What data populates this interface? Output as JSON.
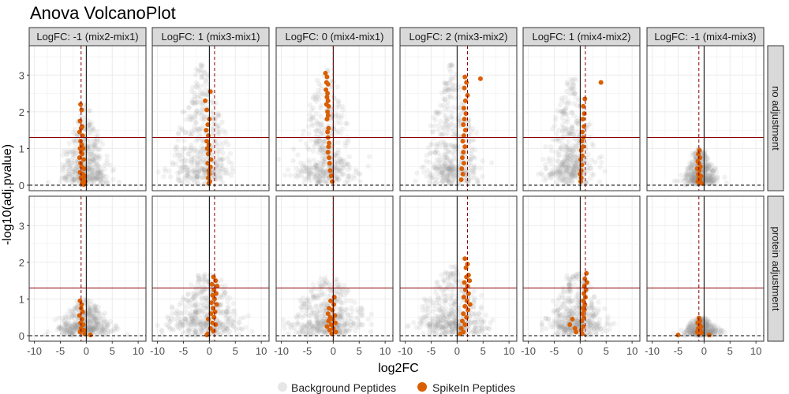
{
  "chart_data": {
    "type": "scatter",
    "title": "Anova VolcanoPlot",
    "xlabel": "log2FC",
    "ylabel": "-log10(adj.pvalue)",
    "xlim": [
      -11,
      11.5
    ],
    "ylim": [
      -0.15,
      3.8
    ],
    "x_ticks": [
      -10,
      -5,
      0,
      5,
      10
    ],
    "y_ticks": [
      0,
      1,
      2,
      3
    ],
    "grid": true,
    "legend_position": "bottom",
    "colors": {
      "background": "#9e9e9e",
      "spikein": "#d95f02",
      "threshold": "#8b0000",
      "strip_fill": "#d9d9d9",
      "grid": "#ebebeb"
    },
    "significance_threshold": 1.3,
    "legend": [
      {
        "key": "background",
        "label": "Background Peptides"
      },
      {
        "key": "spikein",
        "label": "SpikeIn Peptides"
      }
    ],
    "rows": [
      "no adjustment",
      "protein adjustment"
    ],
    "comparisons": [
      {
        "label": "LogFC: -1 (mix2-mix1)",
        "logfc": -1
      },
      {
        "label": "LogFC: 1 (mix3-mix1)",
        "logfc": 1
      },
      {
        "label": "LogFC: 0 (mix4-mix1)",
        "logfc": 0
      },
      {
        "label": "LogFC: 2 (mix3-mix2)",
        "logfc": 2
      },
      {
        "label": "LogFC: 1 (mix4-mix2)",
        "logfc": 1
      },
      {
        "label": "LogFC: -1 (mix4-mix3)",
        "logfc": -1
      }
    ],
    "panels": [
      {
        "comparison": 0,
        "row": 0,
        "background_shape": {
          "center_x": -0.3,
          "spread_x": 4.5,
          "max_y": 2.2,
          "base_y": 0.45
        },
        "spikein": [
          [
            -1.1,
            2.2
          ],
          [
            -0.9,
            2.05
          ],
          [
            -1.2,
            1.75
          ],
          [
            -0.8,
            1.6
          ],
          [
            -1.0,
            1.55
          ],
          [
            -1.3,
            1.45
          ],
          [
            -0.7,
            1.35
          ],
          [
            -1.1,
            1.2
          ],
          [
            -0.9,
            1.1
          ],
          [
            -1.2,
            1.0
          ],
          [
            -0.6,
            1.0
          ],
          [
            -1.0,
            0.9
          ],
          [
            -0.8,
            0.85
          ],
          [
            -1.3,
            0.75
          ],
          [
            -0.5,
            0.7
          ],
          [
            -1.1,
            0.6
          ],
          [
            -0.9,
            0.5
          ],
          [
            -0.4,
            0.45
          ],
          [
            -1.2,
            0.35
          ],
          [
            -0.7,
            0.3
          ],
          [
            -0.3,
            0.25
          ],
          [
            -1.0,
            0.2
          ],
          [
            -0.6,
            0.15
          ],
          [
            -0.2,
            0.1
          ],
          [
            -0.8,
            0.05
          ],
          [
            -0.5,
            0.02
          ]
        ]
      },
      {
        "comparison": 1,
        "row": 0,
        "background_shape": {
          "center_x": -1.5,
          "spread_x": 5.5,
          "max_y": 3.3,
          "base_y": 0.8
        },
        "spikein": [
          [
            0.2,
            2.55
          ],
          [
            -0.8,
            2.3
          ],
          [
            -0.5,
            2.05
          ],
          [
            0.0,
            1.8
          ],
          [
            -0.3,
            1.65
          ],
          [
            -0.6,
            1.5
          ],
          [
            -0.2,
            1.35
          ],
          [
            -0.5,
            1.2
          ],
          [
            -0.1,
            1.1
          ],
          [
            -0.4,
            1.0
          ],
          [
            0.1,
            0.95
          ],
          [
            -0.2,
            0.85
          ],
          [
            0.3,
            0.7
          ],
          [
            -0.3,
            0.6
          ],
          [
            0.2,
            0.5
          ],
          [
            -0.1,
            0.4
          ],
          [
            0.0,
            0.3
          ],
          [
            -0.2,
            0.2
          ],
          [
            0.1,
            0.1
          ],
          [
            -0.1,
            0.05
          ]
        ]
      },
      {
        "comparison": 2,
        "row": 0,
        "background_shape": {
          "center_x": -1.3,
          "spread_x": 5.5,
          "max_y": 3.2,
          "base_y": 0.8
        },
        "spikein": [
          [
            -1.5,
            3.05
          ],
          [
            -1.2,
            2.95
          ],
          [
            -1.3,
            2.8
          ],
          [
            -1.0,
            2.75
          ],
          [
            -1.4,
            2.6
          ],
          [
            -1.1,
            2.5
          ],
          [
            -1.2,
            2.4
          ],
          [
            -1.0,
            2.3
          ],
          [
            -1.3,
            2.2
          ],
          [
            -0.9,
            2.15
          ],
          [
            -1.1,
            2.0
          ],
          [
            -1.0,
            1.9
          ],
          [
            -1.2,
            1.8
          ],
          [
            -0.9,
            1.55
          ],
          [
            -1.1,
            1.45
          ],
          [
            -1.0,
            1.3
          ],
          [
            -0.8,
            1.15
          ],
          [
            -0.9,
            1.05
          ],
          [
            -1.0,
            0.9
          ],
          [
            -0.8,
            0.75
          ],
          [
            -0.7,
            0.6
          ],
          [
            -0.6,
            0.4
          ],
          [
            -0.4,
            0.25
          ],
          [
            -0.2,
            0.1
          ]
        ]
      },
      {
        "comparison": 3,
        "row": 0,
        "background_shape": {
          "center_x": -1.0,
          "spread_x": 5.0,
          "max_y": 3.3,
          "base_y": 0.8
        },
        "spikein": [
          [
            4.5,
            2.9
          ],
          [
            1.5,
            2.95
          ],
          [
            1.8,
            2.8
          ],
          [
            1.4,
            2.65
          ],
          [
            2.0,
            2.45
          ],
          [
            1.6,
            2.3
          ],
          [
            1.3,
            2.1
          ],
          [
            1.7,
            1.95
          ],
          [
            1.4,
            1.8
          ],
          [
            1.2,
            1.65
          ],
          [
            1.6,
            1.5
          ],
          [
            1.3,
            1.35
          ],
          [
            1.1,
            1.2
          ],
          [
            1.5,
            1.05
          ],
          [
            1.2,
            0.9
          ],
          [
            1.0,
            0.75
          ],
          [
            1.3,
            0.6
          ],
          [
            0.9,
            0.45
          ],
          [
            1.1,
            0.3
          ],
          [
            0.8,
            0.15
          ]
        ]
      },
      {
        "comparison": 4,
        "row": 0,
        "background_shape": {
          "center_x": -1.8,
          "spread_x": 5.0,
          "max_y": 2.9,
          "base_y": 0.8
        },
        "spikein": [
          [
            4.0,
            2.8
          ],
          [
            0.9,
            2.35
          ],
          [
            0.6,
            2.15
          ],
          [
            0.8,
            1.95
          ],
          [
            0.5,
            1.8
          ],
          [
            0.7,
            1.6
          ],
          [
            0.4,
            1.45
          ],
          [
            0.6,
            1.3
          ],
          [
            0.3,
            1.2
          ],
          [
            0.5,
            1.05
          ],
          [
            0.2,
            0.95
          ],
          [
            0.4,
            0.8
          ],
          [
            0.1,
            0.7
          ],
          [
            0.3,
            0.55
          ],
          [
            0.2,
            0.4
          ],
          [
            0.0,
            0.3
          ],
          [
            0.2,
            0.2
          ],
          [
            0.1,
            0.1
          ]
        ]
      },
      {
        "comparison": 5,
        "row": 0,
        "background_shape": {
          "center_x": -0.8,
          "spread_x": 3.2,
          "max_y": 1.0,
          "base_y": 0.35
        },
        "spikein": [
          [
            -0.9,
            0.95
          ],
          [
            -1.1,
            0.85
          ],
          [
            -0.8,
            0.75
          ],
          [
            -1.2,
            0.65
          ],
          [
            -1.0,
            0.6
          ],
          [
            -0.7,
            0.5
          ],
          [
            -1.3,
            0.45
          ],
          [
            -0.9,
            0.4
          ],
          [
            -1.1,
            0.3
          ],
          [
            -0.6,
            0.25
          ],
          [
            -1.0,
            0.2
          ],
          [
            -0.8,
            0.15
          ],
          [
            -1.2,
            0.1
          ],
          [
            -0.5,
            0.05
          ]
        ]
      },
      {
        "comparison": 0,
        "row": 1,
        "background_shape": {
          "center_x": -0.3,
          "spread_x": 5.5,
          "max_y": 1.0,
          "base_y": 0.35
        },
        "spikein": [
          [
            -1.2,
            0.95
          ],
          [
            -0.9,
            0.85
          ],
          [
            -1.0,
            0.75
          ],
          [
            -0.7,
            0.65
          ],
          [
            -1.3,
            0.55
          ],
          [
            -0.8,
            0.45
          ],
          [
            -1.1,
            0.35
          ],
          [
            -0.6,
            0.3
          ],
          [
            -1.0,
            0.2
          ],
          [
            -0.5,
            0.15
          ],
          [
            -1.2,
            0.1
          ],
          [
            -0.3,
            0.05
          ],
          [
            0.8,
            0.02
          ]
        ]
      },
      {
        "comparison": 1,
        "row": 1,
        "background_shape": {
          "center_x": -0.5,
          "spread_x": 7.0,
          "max_y": 1.7,
          "base_y": 0.6
        },
        "spikein": [
          [
            0.8,
            1.6
          ],
          [
            1.2,
            1.5
          ],
          [
            0.5,
            1.4
          ],
          [
            1.5,
            1.35
          ],
          [
            0.9,
            1.25
          ],
          [
            1.3,
            1.15
          ],
          [
            0.6,
            1.1
          ],
          [
            1.0,
            1.0
          ],
          [
            0.4,
            0.9
          ],
          [
            1.4,
            0.85
          ],
          [
            0.7,
            0.75
          ],
          [
            1.1,
            0.65
          ],
          [
            0.3,
            0.6
          ],
          [
            0.9,
            0.5
          ],
          [
            -0.2,
            0.45
          ],
          [
            0.6,
            0.35
          ],
          [
            1.2,
            0.3
          ],
          [
            0.2,
            0.2
          ],
          [
            0.8,
            0.12
          ],
          [
            -0.3,
            0.05
          ],
          [
            -0.5,
            0.02
          ]
        ]
      },
      {
        "comparison": 2,
        "row": 1,
        "background_shape": {
          "center_x": -1.0,
          "spread_x": 7.5,
          "max_y": 1.6,
          "base_y": 0.6
        },
        "spikein": [
          [
            0.2,
            1.05
          ],
          [
            -0.5,
            0.95
          ],
          [
            0.1,
            0.85
          ],
          [
            -0.8,
            0.75
          ],
          [
            -0.2,
            0.7
          ],
          [
            -1.0,
            0.6
          ],
          [
            0.3,
            0.55
          ],
          [
            -0.6,
            0.5
          ],
          [
            -0.1,
            0.45
          ],
          [
            -0.9,
            0.4
          ],
          [
            0.4,
            0.35
          ],
          [
            -0.4,
            0.3
          ],
          [
            -1.2,
            0.25
          ],
          [
            0.0,
            0.2
          ],
          [
            -0.7,
            0.15
          ],
          [
            0.5,
            0.1
          ],
          [
            -0.3,
            0.05
          ]
        ]
      },
      {
        "comparison": 3,
        "row": 1,
        "background_shape": {
          "center_x": -0.8,
          "spread_x": 6.5,
          "max_y": 1.9,
          "base_y": 0.6
        },
        "spikein": [
          [
            1.5,
            2.1
          ],
          [
            2.0,
            1.95
          ],
          [
            1.7,
            1.85
          ],
          [
            2.2,
            1.65
          ],
          [
            1.8,
            1.6
          ],
          [
            2.4,
            1.5
          ],
          [
            1.4,
            1.45
          ],
          [
            2.0,
            1.35
          ],
          [
            1.6,
            1.25
          ],
          [
            2.2,
            1.15
          ],
          [
            1.3,
            1.05
          ],
          [
            1.9,
            0.95
          ],
          [
            2.5,
            0.85
          ],
          [
            1.5,
            0.8
          ],
          [
            2.1,
            0.7
          ],
          [
            1.2,
            0.6
          ],
          [
            1.8,
            0.5
          ],
          [
            1.0,
            0.4
          ],
          [
            1.5,
            0.3
          ],
          [
            0.8,
            0.2
          ],
          [
            1.2,
            0.1
          ],
          [
            0.6,
            0.05
          ]
        ]
      },
      {
        "comparison": 4,
        "row": 1,
        "background_shape": {
          "center_x": -0.8,
          "spread_x": 5.5,
          "max_y": 1.7,
          "base_y": 0.6
        },
        "spikein": [
          [
            1.2,
            1.7
          ],
          [
            0.9,
            1.55
          ],
          [
            1.3,
            1.45
          ],
          [
            0.8,
            1.35
          ],
          [
            1.1,
            1.25
          ],
          [
            0.7,
            1.15
          ],
          [
            1.0,
            1.05
          ],
          [
            0.6,
            0.95
          ],
          [
            0.9,
            0.85
          ],
          [
            0.5,
            0.75
          ],
          [
            0.8,
            0.7
          ],
          [
            0.4,
            0.6
          ],
          [
            0.7,
            0.5
          ],
          [
            -1.5,
            0.45
          ],
          [
            0.3,
            0.4
          ],
          [
            -2.0,
            0.3
          ],
          [
            0.6,
            0.25
          ],
          [
            -1.0,
            0.2
          ],
          [
            0.2,
            0.15
          ],
          [
            -0.8,
            0.1
          ],
          [
            0.4,
            0.05
          ]
        ]
      },
      {
        "comparison": 5,
        "row": 1,
        "background_shape": {
          "center_x": -0.5,
          "spread_x": 3.5,
          "max_y": 0.5,
          "base_y": 0.2
        },
        "spikein": [
          [
            -1.0,
            0.48
          ],
          [
            -0.8,
            0.4
          ],
          [
            -1.2,
            0.35
          ],
          [
            -0.9,
            0.3
          ],
          [
            -0.6,
            0.25
          ],
          [
            -1.1,
            0.2
          ],
          [
            -0.7,
            0.15
          ],
          [
            -1.3,
            0.1
          ],
          [
            -0.5,
            0.08
          ],
          [
            -1.0,
            0.05
          ],
          [
            -5.0,
            0.02
          ],
          [
            1.0,
            0.02
          ]
        ]
      }
    ]
  }
}
